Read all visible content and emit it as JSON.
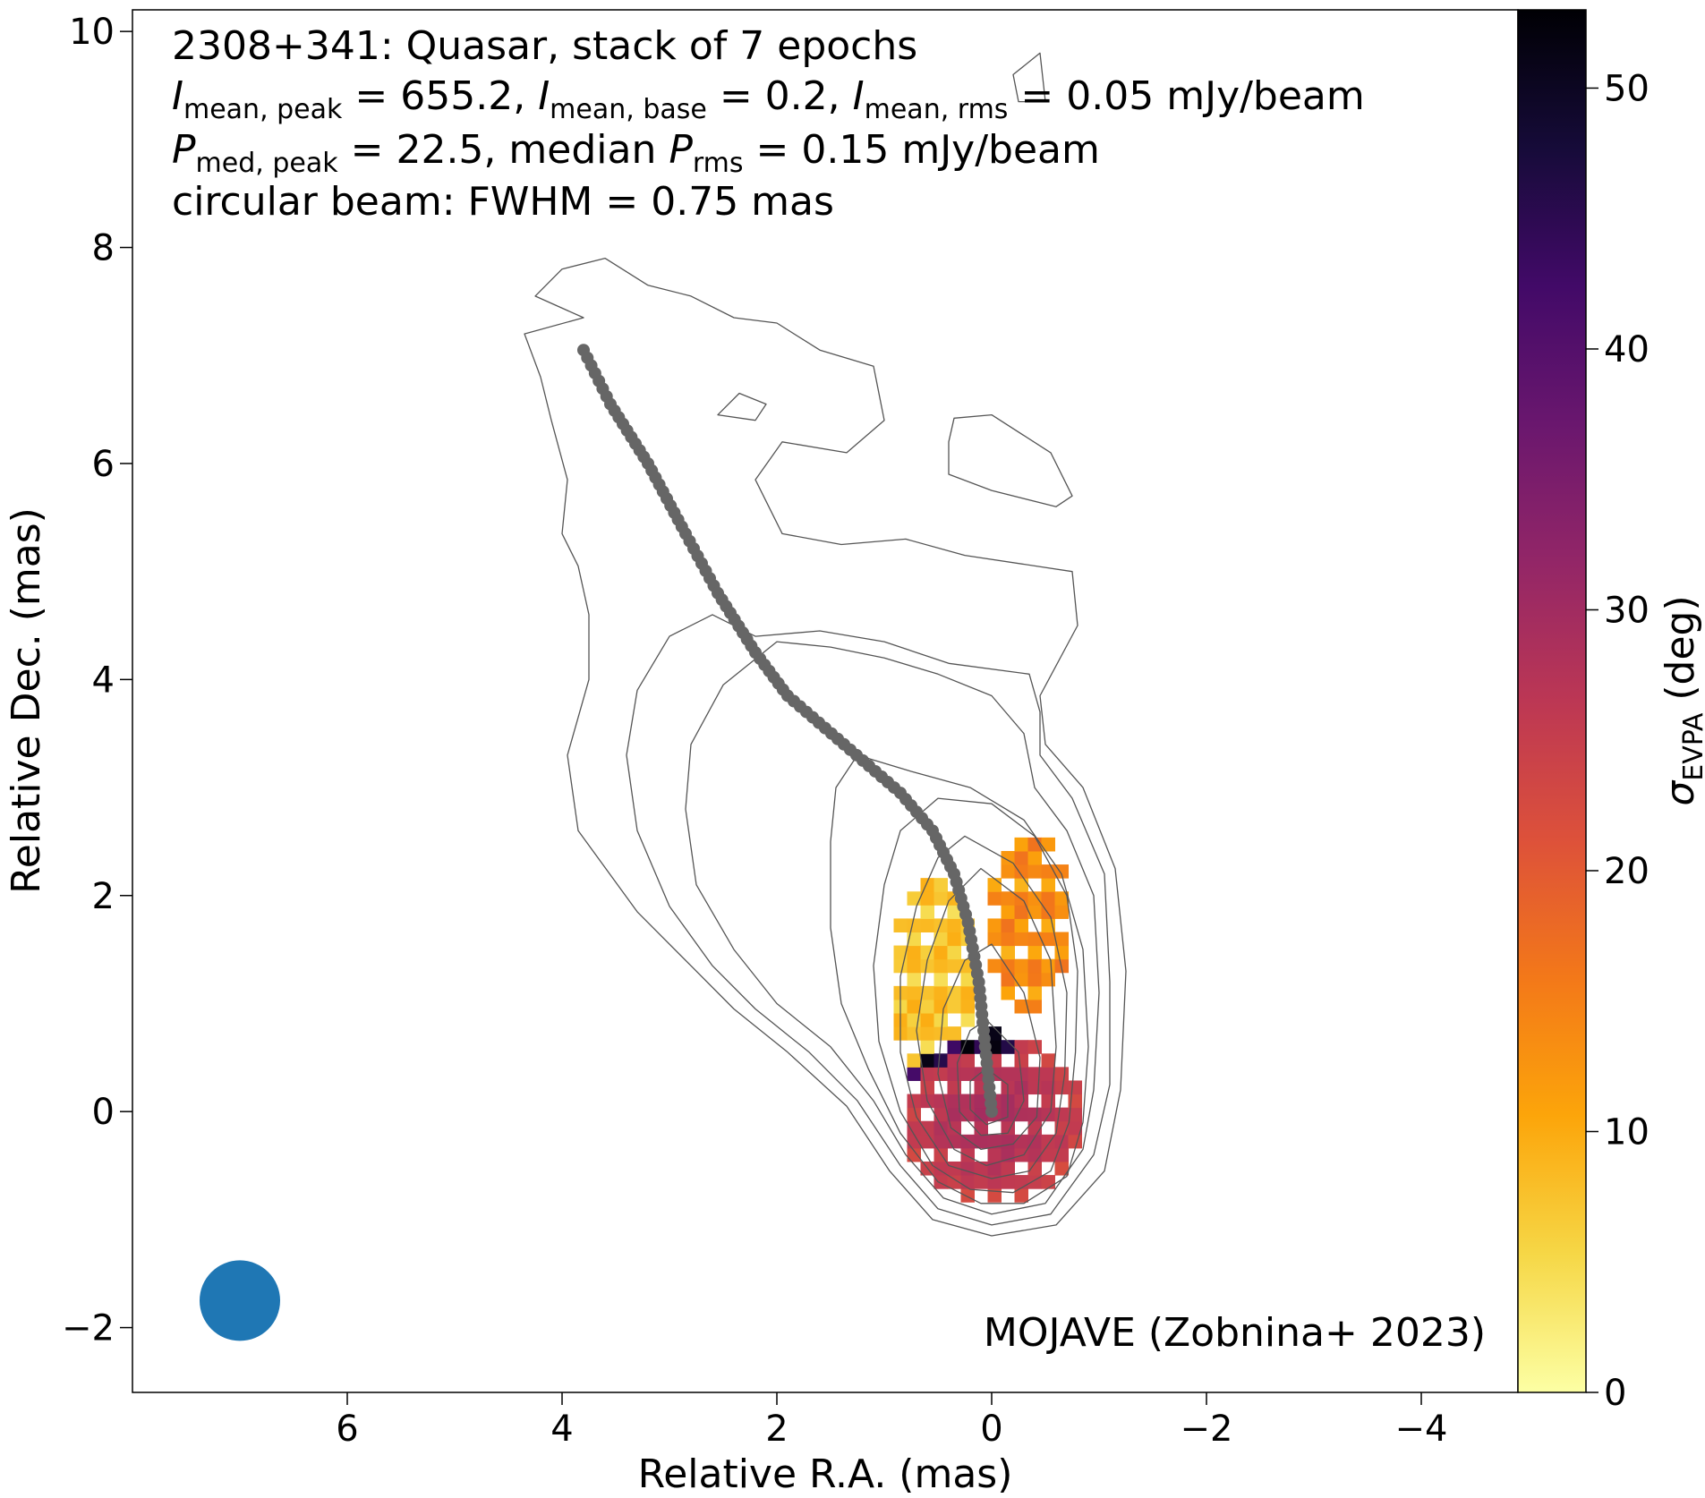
{
  "chart_data": {
    "type": "heatmap",
    "annotations": {
      "line1": "2308+341: Quasar, stack of 7 epochs",
      "line2": {
        "i1": "I",
        "s1": "mean, peak",
        "t1": " = 655.2, ",
        "i2": "I",
        "s2": "mean, base",
        "t2": " = 0.2, ",
        "i3": "I",
        "s3": "mean, rms",
        "t3": " = 0.05 mJy/beam"
      },
      "line3": {
        "i1": "P",
        "s1": "med, peak",
        "t1": " = 22.5, median ",
        "i2": "P",
        "s2": "rms",
        "t2": " = 0.15 mJy/beam"
      },
      "line4": "circular beam: FWHM = 0.75 mas",
      "credit": "MOJAVE (Zobnina+ 2023)"
    },
    "xlabel": "Relative R.A. (mas)",
    "ylabel": "Relative Dec. (mas)",
    "colorbar_label": {
      "symbol": "σ",
      "sub": "EVPA",
      "rest": " (deg)"
    },
    "xlim": [
      8.0,
      -4.9
    ],
    "ylim": [
      -2.6,
      10.2
    ],
    "x_ticks": [
      6,
      4,
      2,
      0,
      -2,
      -4
    ],
    "x_tick_labels": [
      "6",
      "4",
      "2",
      "0",
      "−2",
      "−4"
    ],
    "y_ticks": [
      -2,
      0,
      2,
      4,
      6,
      8,
      10
    ],
    "y_tick_labels": [
      "−2",
      "0",
      "2",
      "4",
      "6",
      "8",
      "10"
    ],
    "colorbar_range": [
      0,
      53
    ],
    "colorbar_ticks": [
      0,
      10,
      20,
      30,
      40,
      50
    ],
    "colorbar_tick_labels": [
      "0",
      "10",
      "20",
      "30",
      "40",
      "50"
    ],
    "colormap": "inferno_r",
    "colormap_stops": [
      "#fcffa4",
      "#f6d746",
      "#fca50a",
      "#f37819",
      "#dd513a",
      "#bc3754",
      "#932667",
      "#6a176e",
      "#420a68",
      "#160b39",
      "#000004"
    ],
    "beam": {
      "x": 7.0,
      "y": -1.75,
      "fwhm": 0.75,
      "color": "#1f77b4"
    },
    "ridgeline": {
      "color": "#666666",
      "points": [
        [
          3.8,
          7.05
        ],
        [
          3.55,
          6.55
        ],
        [
          3.2,
          6.0
        ],
        [
          2.85,
          5.35
        ],
        [
          2.55,
          4.8
        ],
        [
          2.2,
          4.25
        ],
        [
          1.9,
          3.85
        ],
        [
          1.55,
          3.55
        ],
        [
          1.2,
          3.25
        ],
        [
          0.85,
          2.95
        ],
        [
          0.55,
          2.6
        ],
        [
          0.35,
          2.2
        ],
        [
          0.22,
          1.75
        ],
        [
          0.12,
          1.2
        ],
        [
          0.06,
          0.6
        ],
        [
          0.0,
          0.0
        ]
      ]
    },
    "contours": {
      "color": "#555555",
      "levels_mas": [
        [
          [
            3.8,
            7.35
          ],
          [
            4.25,
            7.55
          ],
          [
            4.0,
            7.8
          ],
          [
            3.6,
            7.9
          ],
          [
            3.2,
            7.65
          ],
          [
            2.8,
            7.55
          ],
          [
            2.4,
            7.35
          ],
          [
            2.0,
            7.3
          ],
          [
            1.6,
            7.05
          ],
          [
            1.1,
            6.9
          ],
          [
            1.0,
            6.4
          ],
          [
            1.35,
            6.1
          ],
          [
            1.95,
            6.2
          ],
          [
            2.2,
            5.85
          ],
          [
            1.95,
            5.35
          ],
          [
            1.4,
            5.25
          ],
          [
            0.8,
            5.3
          ],
          [
            0.25,
            5.15
          ],
          [
            -0.75,
            5.0
          ],
          [
            -0.8,
            4.5
          ],
          [
            -0.45,
            3.85
          ],
          [
            -0.5,
            3.4
          ],
          [
            -0.85,
            3.0
          ],
          [
            -1.15,
            2.25
          ],
          [
            -1.25,
            1.3
          ],
          [
            -1.2,
            0.2
          ],
          [
            -1.05,
            -0.55
          ],
          [
            -0.6,
            -1.05
          ],
          [
            0.0,
            -1.15
          ],
          [
            0.55,
            -1.0
          ],
          [
            0.95,
            -0.55
          ],
          [
            1.35,
            0.05
          ],
          [
            1.9,
            0.55
          ],
          [
            2.4,
            0.95
          ],
          [
            2.8,
            1.35
          ],
          [
            3.3,
            1.85
          ],
          [
            3.85,
            2.6
          ],
          [
            3.95,
            3.3
          ],
          [
            3.75,
            4.0
          ],
          [
            3.75,
            4.6
          ],
          [
            3.85,
            5.05
          ],
          [
            4.0,
            5.35
          ],
          [
            3.95,
            5.85
          ],
          [
            4.1,
            6.4
          ],
          [
            4.2,
            6.8
          ],
          [
            4.35,
            7.2
          ],
          [
            3.8,
            7.35
          ]
        ],
        [
          [
            2.6,
            4.6
          ],
          [
            2.2,
            4.4
          ],
          [
            1.6,
            4.45
          ],
          [
            1.0,
            4.35
          ],
          [
            0.4,
            4.15
          ],
          [
            -0.35,
            4.05
          ],
          [
            -0.45,
            3.7
          ],
          [
            -0.45,
            3.3
          ],
          [
            -0.75,
            2.9
          ],
          [
            -1.05,
            2.2
          ],
          [
            -1.1,
            1.2
          ],
          [
            -1.1,
            0.25
          ],
          [
            -0.95,
            -0.4
          ],
          [
            -0.55,
            -0.95
          ],
          [
            0.0,
            -1.05
          ],
          [
            0.5,
            -0.9
          ],
          [
            0.85,
            -0.5
          ],
          [
            1.25,
            0.1
          ],
          [
            1.7,
            0.55
          ],
          [
            2.2,
            0.95
          ],
          [
            2.6,
            1.35
          ],
          [
            3.0,
            1.9
          ],
          [
            3.3,
            2.6
          ],
          [
            3.4,
            3.3
          ],
          [
            3.3,
            3.9
          ],
          [
            3.0,
            4.4
          ],
          [
            2.6,
            4.6
          ]
        ],
        [
          [
            2.0,
            4.35
          ],
          [
            1.5,
            4.3
          ],
          [
            1.0,
            4.2
          ],
          [
            0.5,
            4.05
          ],
          [
            0.0,
            3.85
          ],
          [
            -0.3,
            3.5
          ],
          [
            -0.4,
            3.0
          ],
          [
            -0.7,
            2.6
          ],
          [
            -0.95,
            2.0
          ],
          [
            -1.0,
            1.1
          ],
          [
            -0.95,
            0.2
          ],
          [
            -0.85,
            -0.35
          ],
          [
            -0.5,
            -0.85
          ],
          [
            0.0,
            -0.95
          ],
          [
            0.45,
            -0.8
          ],
          [
            0.8,
            -0.4
          ],
          [
            1.1,
            0.1
          ],
          [
            1.5,
            0.6
          ],
          [
            2.0,
            1.0
          ],
          [
            2.4,
            1.5
          ],
          [
            2.75,
            2.1
          ],
          [
            2.85,
            2.8
          ],
          [
            2.8,
            3.4
          ],
          [
            2.5,
            3.95
          ],
          [
            2.0,
            4.35
          ]
        ],
        [
          [
            1.25,
            3.3
          ],
          [
            0.75,
            3.15
          ],
          [
            0.2,
            3.0
          ],
          [
            -0.3,
            2.7
          ],
          [
            -0.65,
            2.2
          ],
          [
            -0.85,
            1.5
          ],
          [
            -0.9,
            0.6
          ],
          [
            -0.85,
            -0.1
          ],
          [
            -0.7,
            -0.6
          ],
          [
            -0.3,
            -0.85
          ],
          [
            0.1,
            -0.85
          ],
          [
            0.5,
            -0.65
          ],
          [
            0.85,
            -0.2
          ],
          [
            1.15,
            0.4
          ],
          [
            1.4,
            1.0
          ],
          [
            1.5,
            1.7
          ],
          [
            1.5,
            2.5
          ],
          [
            1.45,
            3.0
          ],
          [
            1.25,
            3.3
          ]
        ],
        [
          [
            0.5,
            2.9
          ],
          [
            0.0,
            2.85
          ],
          [
            -0.4,
            2.55
          ],
          [
            -0.7,
            2.0
          ],
          [
            -0.8,
            1.3
          ],
          [
            -0.78,
            0.55
          ],
          [
            -0.72,
            -0.1
          ],
          [
            -0.55,
            -0.55
          ],
          [
            -0.2,
            -0.75
          ],
          [
            0.2,
            -0.72
          ],
          [
            0.55,
            -0.5
          ],
          [
            0.85,
            0.0
          ],
          [
            1.05,
            0.65
          ],
          [
            1.1,
            1.35
          ],
          [
            1.0,
            2.1
          ],
          [
            0.85,
            2.6
          ],
          [
            0.5,
            2.9
          ]
        ],
        [
          [
            0.25,
            2.55
          ],
          [
            -0.2,
            2.3
          ],
          [
            -0.55,
            1.8
          ],
          [
            -0.7,
            1.1
          ],
          [
            -0.68,
            0.35
          ],
          [
            -0.6,
            -0.2
          ],
          [
            -0.35,
            -0.55
          ],
          [
            0.0,
            -0.62
          ],
          [
            0.4,
            -0.5
          ],
          [
            0.7,
            -0.05
          ],
          [
            0.85,
            0.55
          ],
          [
            0.85,
            1.25
          ],
          [
            0.7,
            1.9
          ],
          [
            0.5,
            2.35
          ],
          [
            0.25,
            2.55
          ]
        ],
        [
          [
            0.1,
            2.25
          ],
          [
            -0.3,
            1.95
          ],
          [
            -0.55,
            1.4
          ],
          [
            -0.6,
            0.6
          ],
          [
            -0.55,
            0.0
          ],
          [
            -0.3,
            -0.4
          ],
          [
            0.05,
            -0.5
          ],
          [
            0.35,
            -0.35
          ],
          [
            0.6,
            0.1
          ],
          [
            0.7,
            0.75
          ],
          [
            0.6,
            1.4
          ],
          [
            0.4,
            1.95
          ],
          [
            0.1,
            2.25
          ]
        ],
        [
          [
            0.0,
            1.55
          ],
          [
            -0.3,
            1.1
          ],
          [
            -0.45,
            0.5
          ],
          [
            -0.42,
            -0.05
          ],
          [
            -0.2,
            -0.3
          ],
          [
            0.1,
            -0.35
          ],
          [
            0.38,
            -0.15
          ],
          [
            0.5,
            0.35
          ],
          [
            0.45,
            0.95
          ],
          [
            0.25,
            1.4
          ],
          [
            0.0,
            1.55
          ]
        ],
        [
          [
            0.05,
            0.85
          ],
          [
            -0.25,
            0.55
          ],
          [
            -0.3,
            0.1
          ],
          [
            -0.15,
            -0.2
          ],
          [
            0.1,
            -0.22
          ],
          [
            0.3,
            0.0
          ],
          [
            0.32,
            0.45
          ],
          [
            0.2,
            0.75
          ],
          [
            0.05,
            0.85
          ]
        ],
        [
          [
            0.05,
            0.4
          ],
          [
            -0.15,
            0.25
          ],
          [
            -0.15,
            -0.05
          ],
          [
            0.05,
            -0.12
          ],
          [
            0.2,
            0.02
          ],
          [
            0.2,
            0.28
          ],
          [
            0.05,
            0.4
          ]
        ],
        [
          [
            2.55,
            6.45
          ],
          [
            2.35,
            6.65
          ],
          [
            2.1,
            6.55
          ],
          [
            2.2,
            6.4
          ],
          [
            2.55,
            6.45
          ]
        ],
        [
          [
            0.35,
            6.42
          ],
          [
            0.0,
            6.45
          ],
          [
            -0.55,
            6.1
          ],
          [
            -0.75,
            5.7
          ],
          [
            -0.6,
            5.6
          ],
          [
            0.0,
            5.75
          ],
          [
            0.4,
            5.9
          ],
          [
            0.4,
            6.2
          ],
          [
            0.35,
            6.42
          ]
        ],
        [
          [
            -0.2,
            9.6
          ],
          [
            -0.45,
            9.8
          ],
          [
            -0.5,
            9.35
          ],
          [
            -0.25,
            9.35
          ],
          [
            -0.2,
            9.6
          ]
        ]
      ]
    }
  }
}
